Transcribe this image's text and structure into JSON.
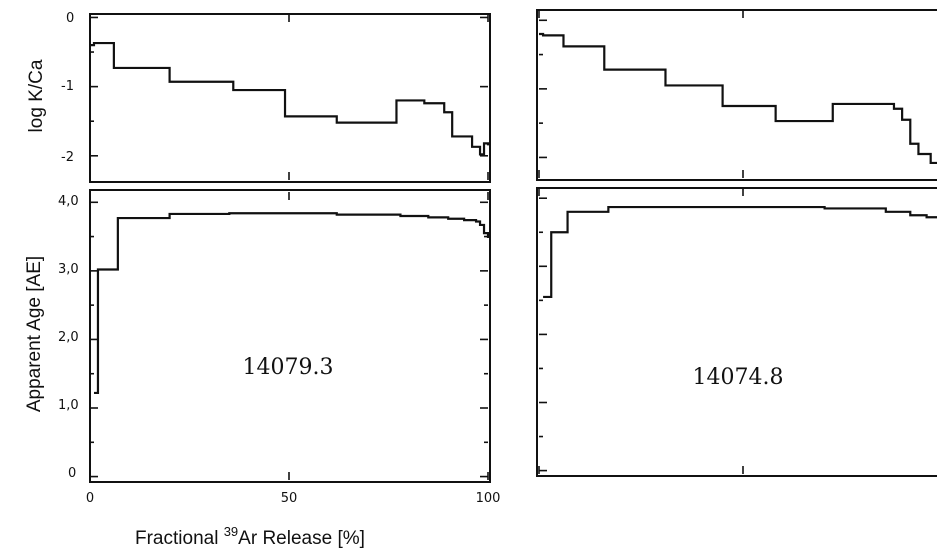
{
  "colors": {
    "line": "#111111",
    "background": "#ffffff"
  },
  "axes": {
    "y_top_label": "log K/Ca",
    "y_bottom_label": "Apparent Age [AE]",
    "x_label_prefix": "Fractional ",
    "x_label_sup": "39",
    "x_label_suffix": "Ar Release [%]",
    "x_ticks": [
      "0",
      "50",
      "100"
    ],
    "y_top_ticks": [
      "0",
      "-1",
      "-2"
    ],
    "y_bottom_ticks": [
      "4,0",
      "3,0",
      "2,0",
      "1,0",
      "0"
    ]
  },
  "chart_data": [
    {
      "type": "line",
      "panel": "left-top",
      "ylabel": "log K/Ca",
      "xlim": [
        0,
        100
      ],
      "ylim": [
        -2.35,
        0.05
      ],
      "x": [
        0,
        1,
        6,
        20,
        36,
        49,
        62,
        77,
        84,
        89,
        91,
        96,
        98,
        99,
        100
      ],
      "y": [
        -0.4,
        -0.37,
        -0.73,
        -0.93,
        -1.05,
        -1.43,
        -1.52,
        -1.2,
        -1.24,
        -1.37,
        -1.72,
        -1.87,
        -1.98,
        -1.82,
        -1.85
      ]
    },
    {
      "type": "line",
      "panel": "left-bottom",
      "ylabel": "Apparent Age [AE]",
      "xlabel": "Fractional 39Ar Release [%]",
      "xlim": [
        0,
        100
      ],
      "ylim": [
        -0.05,
        4.15
      ],
      "x": [
        1,
        2,
        7,
        20,
        35,
        62,
        78,
        85,
        90,
        94,
        97,
        98,
        99,
        100
      ],
      "y": [
        1.22,
        3.02,
        3.77,
        3.83,
        3.84,
        3.82,
        3.8,
        3.78,
        3.76,
        3.74,
        3.72,
        3.67,
        3.55,
        3.48
      ]
    },
    {
      "type": "line",
      "panel": "right-top",
      "xlim": [
        0,
        100
      ],
      "ylim": [
        -2.3,
        0.15
      ],
      "x": [
        0,
        1,
        6,
        16,
        31,
        45,
        58,
        72,
        87,
        89,
        91,
        93,
        96,
        100
      ],
      "y": [
        -0.2,
        -0.22,
        -0.38,
        -0.72,
        -0.95,
        -1.25,
        -1.47,
        -1.22,
        -1.29,
        -1.45,
        -1.8,
        -1.95,
        -2.08,
        -2.12
      ]
    },
    {
      "type": "line",
      "panel": "right-bottom",
      "xlim": [
        0,
        100
      ],
      "ylim": [
        -0.05,
        4.15
      ],
      "x": [
        1,
        3,
        7,
        17,
        70,
        85,
        91,
        95,
        100
      ],
      "y": [
        2.55,
        3.5,
        3.8,
        3.87,
        3.85,
        3.8,
        3.75,
        3.72,
        3.77
      ]
    }
  ],
  "panels": {
    "left_sample": "14079.3",
    "right_sample": "14074.8"
  }
}
